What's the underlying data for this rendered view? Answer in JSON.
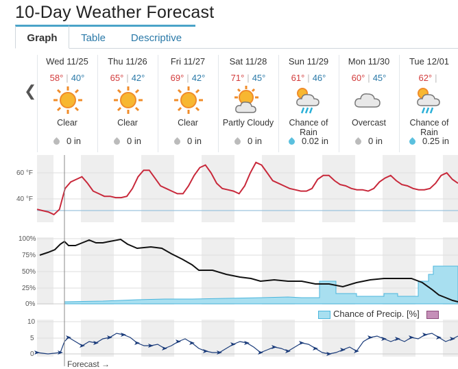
{
  "title": "10-Day Weather Forecast",
  "tabs": [
    {
      "label": "Graph",
      "active": true
    },
    {
      "label": "Table",
      "active": false
    },
    {
      "label": "Descriptive",
      "active": false
    }
  ],
  "days": [
    {
      "name": "Wed 11/25",
      "hi": "58°",
      "lo": "40°",
      "icon": "sun-icon",
      "condition": "Clear",
      "precip": "0 in"
    },
    {
      "name": "Thu 11/26",
      "hi": "65°",
      "lo": "42°",
      "icon": "sun-icon",
      "condition": "Clear",
      "precip": "0 in"
    },
    {
      "name": "Fri 11/27",
      "hi": "69°",
      "lo": "42°",
      "icon": "sun-icon",
      "condition": "Clear",
      "precip": "0 in"
    },
    {
      "name": "Sat 11/28",
      "hi": "71°",
      "lo": "45°",
      "icon": "partly-cloudy-icon",
      "condition": "Partly Cloudy",
      "precip": "0 in"
    },
    {
      "name": "Sun 11/29",
      "hi": "61°",
      "lo": "46°",
      "icon": "rain-icon",
      "condition": "Chance of Rain",
      "precip": "0.02 in"
    },
    {
      "name": "Mon 11/30",
      "hi": "60°",
      "lo": "45°",
      "icon": "cloud-icon",
      "condition": "Overcast",
      "precip": "0 in"
    },
    {
      "name": "Tue 12/01",
      "hi": "62°",
      "lo": "",
      "icon": "rain-icon",
      "condition": "Chance of Rain",
      "precip": "0.25 in"
    }
  ],
  "charts": {
    "temp_ticks": [
      "60 °F",
      "40 °F"
    ],
    "pct_ticks": [
      "100%",
      "75%",
      "50%",
      "25%",
      "0%"
    ],
    "wind_ticks": [
      "10",
      "5",
      "0"
    ],
    "legend_label": "Chance of Precip. [%]",
    "forecast_label": "Forecast →"
  },
  "colors": {
    "temp_line": "#c8283a",
    "humidity_line": "#111111",
    "precip_fill": "#a8dff0",
    "wind_line": "#1a3b7a",
    "accent": "#4aa3c8"
  },
  "chart_data": {
    "type": "line",
    "temperature_f": [
      32,
      31,
      30,
      28,
      32,
      48,
      53,
      55,
      57,
      52,
      46,
      44,
      42,
      42,
      41,
      41,
      42,
      48,
      57,
      62,
      62,
      56,
      50,
      48,
      46,
      44,
      44,
      50,
      58,
      64,
      66,
      60,
      52,
      48,
      47,
      46,
      44,
      50,
      60,
      68,
      66,
      60,
      54,
      52,
      50,
      48,
      47,
      46,
      46,
      48,
      55,
      58,
      58,
      54,
      51,
      50,
      48,
      47,
      47,
      46,
      48,
      53,
      56,
      58,
      54,
      51,
      50,
      48,
      47,
      47,
      48,
      52,
      58,
      60,
      55,
      52
    ]
  }
}
